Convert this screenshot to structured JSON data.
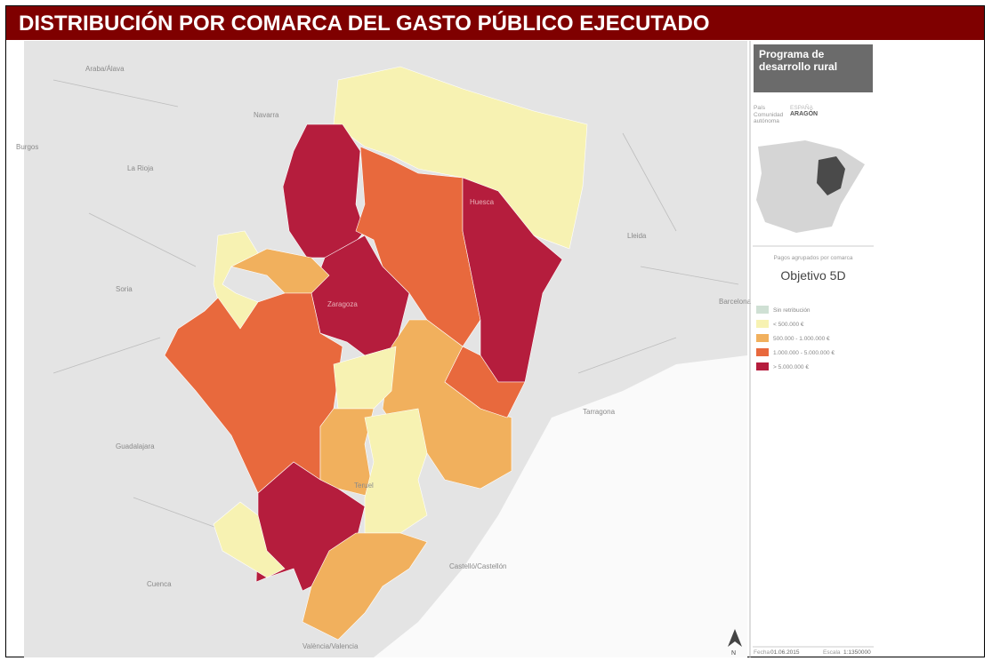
{
  "header": {
    "title": "DISTRIBUCIÓN POR COMARCA DEL GASTO PÚBLICO EJECUTADO"
  },
  "map": {
    "place_labels": [
      "Araba/Álava",
      "Navarra",
      "Burgos",
      "La Rioja",
      "Soria",
      "Zaragoza",
      "Huesca",
      "Lleida",
      "Barcelona",
      "Tarragona",
      "Guadalajara",
      "Teruel",
      "Cuenca",
      "Castelló/Castellón",
      "València/Valencia"
    ],
    "north_label": "N"
  },
  "panel": {
    "program": "Programa de desarrollo rural",
    "country_label": "País",
    "country": "ESPAÑA",
    "community_label": "Comunidad autónoma",
    "community": "ARAGÓN",
    "legend_caption": "Pagos agrupados por comarca",
    "objective": "Objetivo 5D",
    "legend": [
      {
        "label": "Sin retribución",
        "color": "#cfe0d4"
      },
      {
        "label": "< 500.000 €",
        "color": "#f7f2b2"
      },
      {
        "label": "500.000 - 1.000.000 €",
        "color": "#f1b05d"
      },
      {
        "label": "1.000.000 - 5.000.000 €",
        "color": "#e8693d"
      },
      {
        "label": "> 5.000.000 €",
        "color": "#b51d3d"
      }
    ],
    "date_label": "Fecha",
    "date": "01.06.2015",
    "scale_label": "Escala",
    "scale": "1:1350000"
  }
}
